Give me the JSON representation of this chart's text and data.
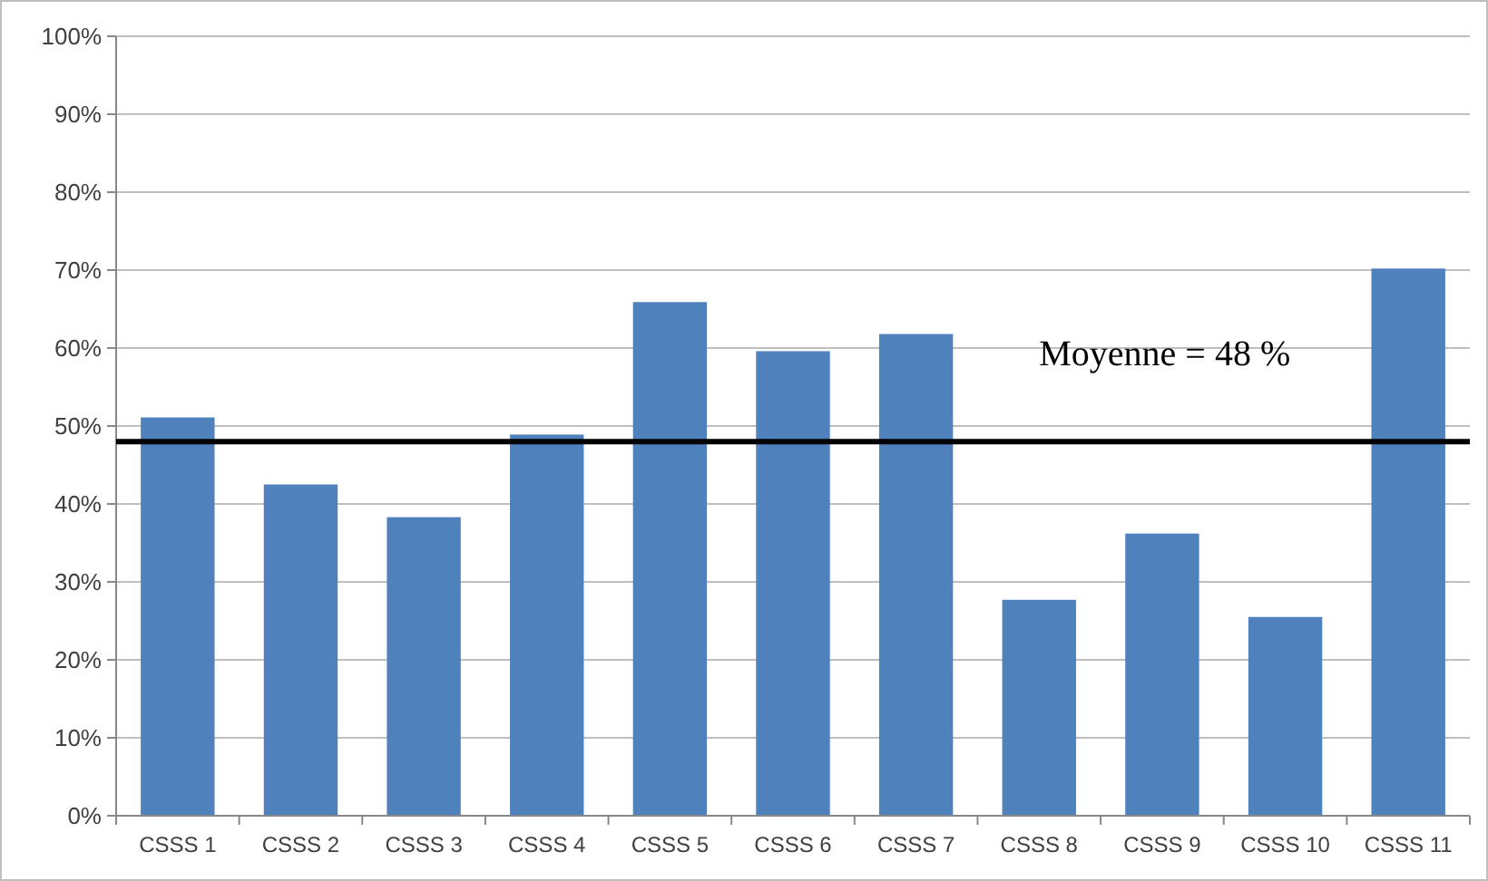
{
  "chart_data": {
    "type": "bar",
    "categories": [
      "CSSS 1",
      "CSSS 2",
      "CSSS 3",
      "CSSS 4",
      "CSSS 5",
      "CSSS 6",
      "CSSS 7",
      "CSSS 8",
      "CSSS 9",
      "CSSS 10",
      "CSSS 11"
    ],
    "values": [
      51.1,
      42.5,
      38.3,
      48.9,
      65.9,
      59.6,
      61.8,
      27.7,
      36.2,
      25.5,
      70.2
    ],
    "color": "#4f81bd",
    "ylim": [
      0,
      100
    ],
    "yticks": [
      {
        "value": 0,
        "label": "0%"
      },
      {
        "value": 10,
        "label": "10%"
      },
      {
        "value": 20,
        "label": "20%"
      },
      {
        "value": 30,
        "label": "30%"
      },
      {
        "value": 40,
        "label": "40%"
      },
      {
        "value": 50,
        "label": "50%"
      },
      {
        "value": 60,
        "label": "60%"
      },
      {
        "value": 70,
        "label": "70%"
      },
      {
        "value": 80,
        "label": "80%"
      },
      {
        "value": 90,
        "label": "90%"
      },
      {
        "value": 100,
        "label": "100%"
      }
    ],
    "grid": "y",
    "ref_lines": [
      {
        "axis": "y",
        "value": 48,
        "label": "Moyenne = 48 %",
        "color": "#000000"
      }
    ]
  }
}
